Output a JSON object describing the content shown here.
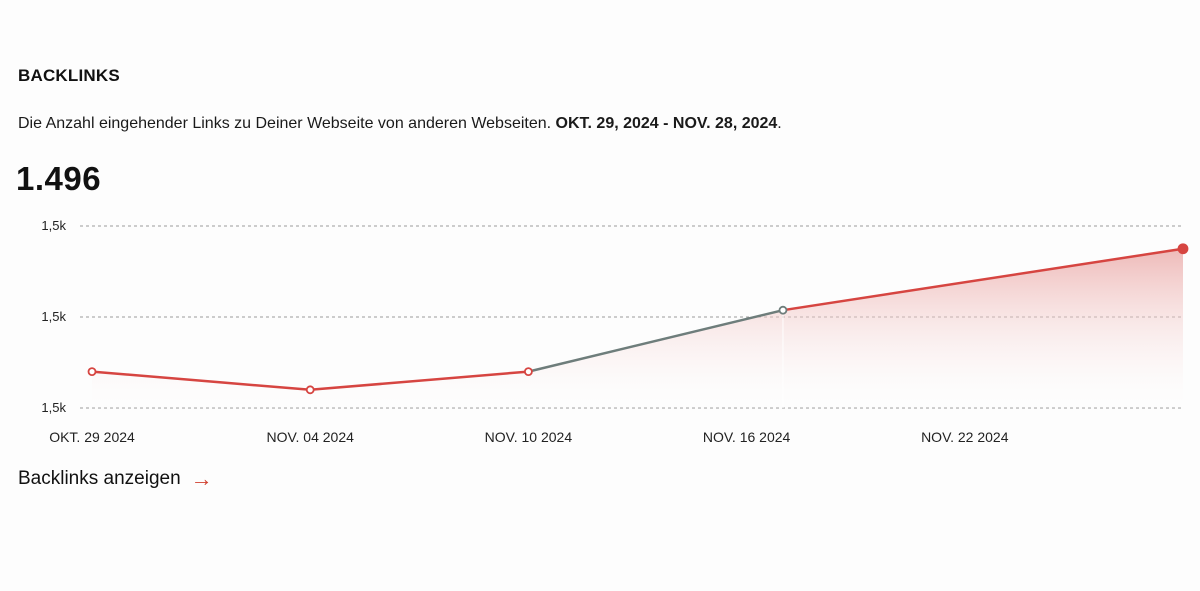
{
  "widget": {
    "title": "BACKLINKS",
    "description": "Die Anzahl eingehender Links zu Deiner Webseite von anderen Webseiten.",
    "date_range": "OKT. 29, 2024 - NOV. 28, 2024",
    "date_range_suffix": ".",
    "total": "1.496",
    "cta_label": "Backlinks anzeigen",
    "cta_icon": "arrow-right-icon"
  },
  "colors": {
    "line": "#d64541",
    "highlight_segment": "#6e7d7b",
    "fill_top": "#e9a3a1",
    "grid": "#9a9a9a",
    "arrow": "#d0402f"
  },
  "chart_data": {
    "type": "area",
    "y_tick_labels": [
      "1,5k",
      "1,5k",
      "1,5k"
    ],
    "x_tick_labels": [
      "OKT. 29 2024",
      "NOV. 04 2024",
      "NOV. 10 2024",
      "NOV. 16 2024",
      "NOV. 22 2024"
    ],
    "points": [
      {
        "date": "2024-10-29",
        "value": 1492.5
      },
      {
        "date": "2024-11-04",
        "value": 1492.1
      },
      {
        "date": "2024-11-10",
        "value": 1492.5
      },
      {
        "date": "2024-11-17",
        "value": 1493.85
      },
      {
        "date": "2024-11-28",
        "value": 1495.2
      }
    ],
    "highlight_segment": [
      "2024-11-10",
      "2024-11-17"
    ],
    "ylim": [
      1491.7,
      1495.7
    ],
    "grid": true,
    "legend": "none"
  }
}
